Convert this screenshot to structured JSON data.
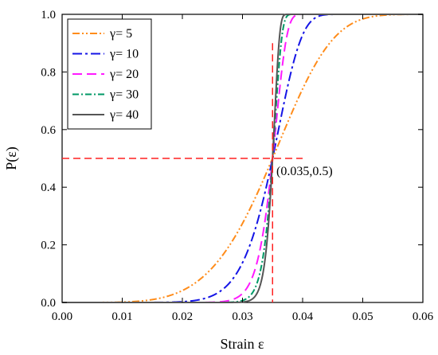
{
  "chart_data": {
    "type": "line",
    "xlabel": "Strain ε",
    "ylabel": "P(ε)",
    "xlim": [
      0,
      0.06
    ],
    "ylim": [
      0,
      1.0
    ],
    "xticks": [
      "0.00",
      "0.01",
      "0.02",
      "0.03",
      "0.04",
      "0.05",
      "0.06"
    ],
    "yticks": [
      "0.0",
      "0.2",
      "0.4",
      "0.6",
      "0.8",
      "1.0"
    ],
    "grid": false,
    "legend_position": "top-left",
    "center": 0.035,
    "series": [
      {
        "name": "γ= 5",
        "gamma": 5,
        "color": "#ff8c1a",
        "dash": "9,3,2,3,2,3"
      },
      {
        "name": "γ= 10",
        "gamma": 10,
        "color": "#1414e6",
        "dash": "12,4,3,4"
      },
      {
        "name": "γ= 20",
        "gamma": 20,
        "color": "#ff1aff",
        "dash": "12,6"
      },
      {
        "name": "γ= 30",
        "gamma": 30,
        "color": "#009966",
        "dash": "8,3,2,3"
      },
      {
        "name": "γ= 40",
        "gamma": 40,
        "color": "#555555",
        "dash": ""
      }
    ],
    "reference_lines": {
      "x": 0.035,
      "y": 0.5,
      "color": "#ff2020"
    },
    "annotation": {
      "text": "(0.035,0.5)",
      "x": 0.035,
      "y": 0.5
    }
  }
}
